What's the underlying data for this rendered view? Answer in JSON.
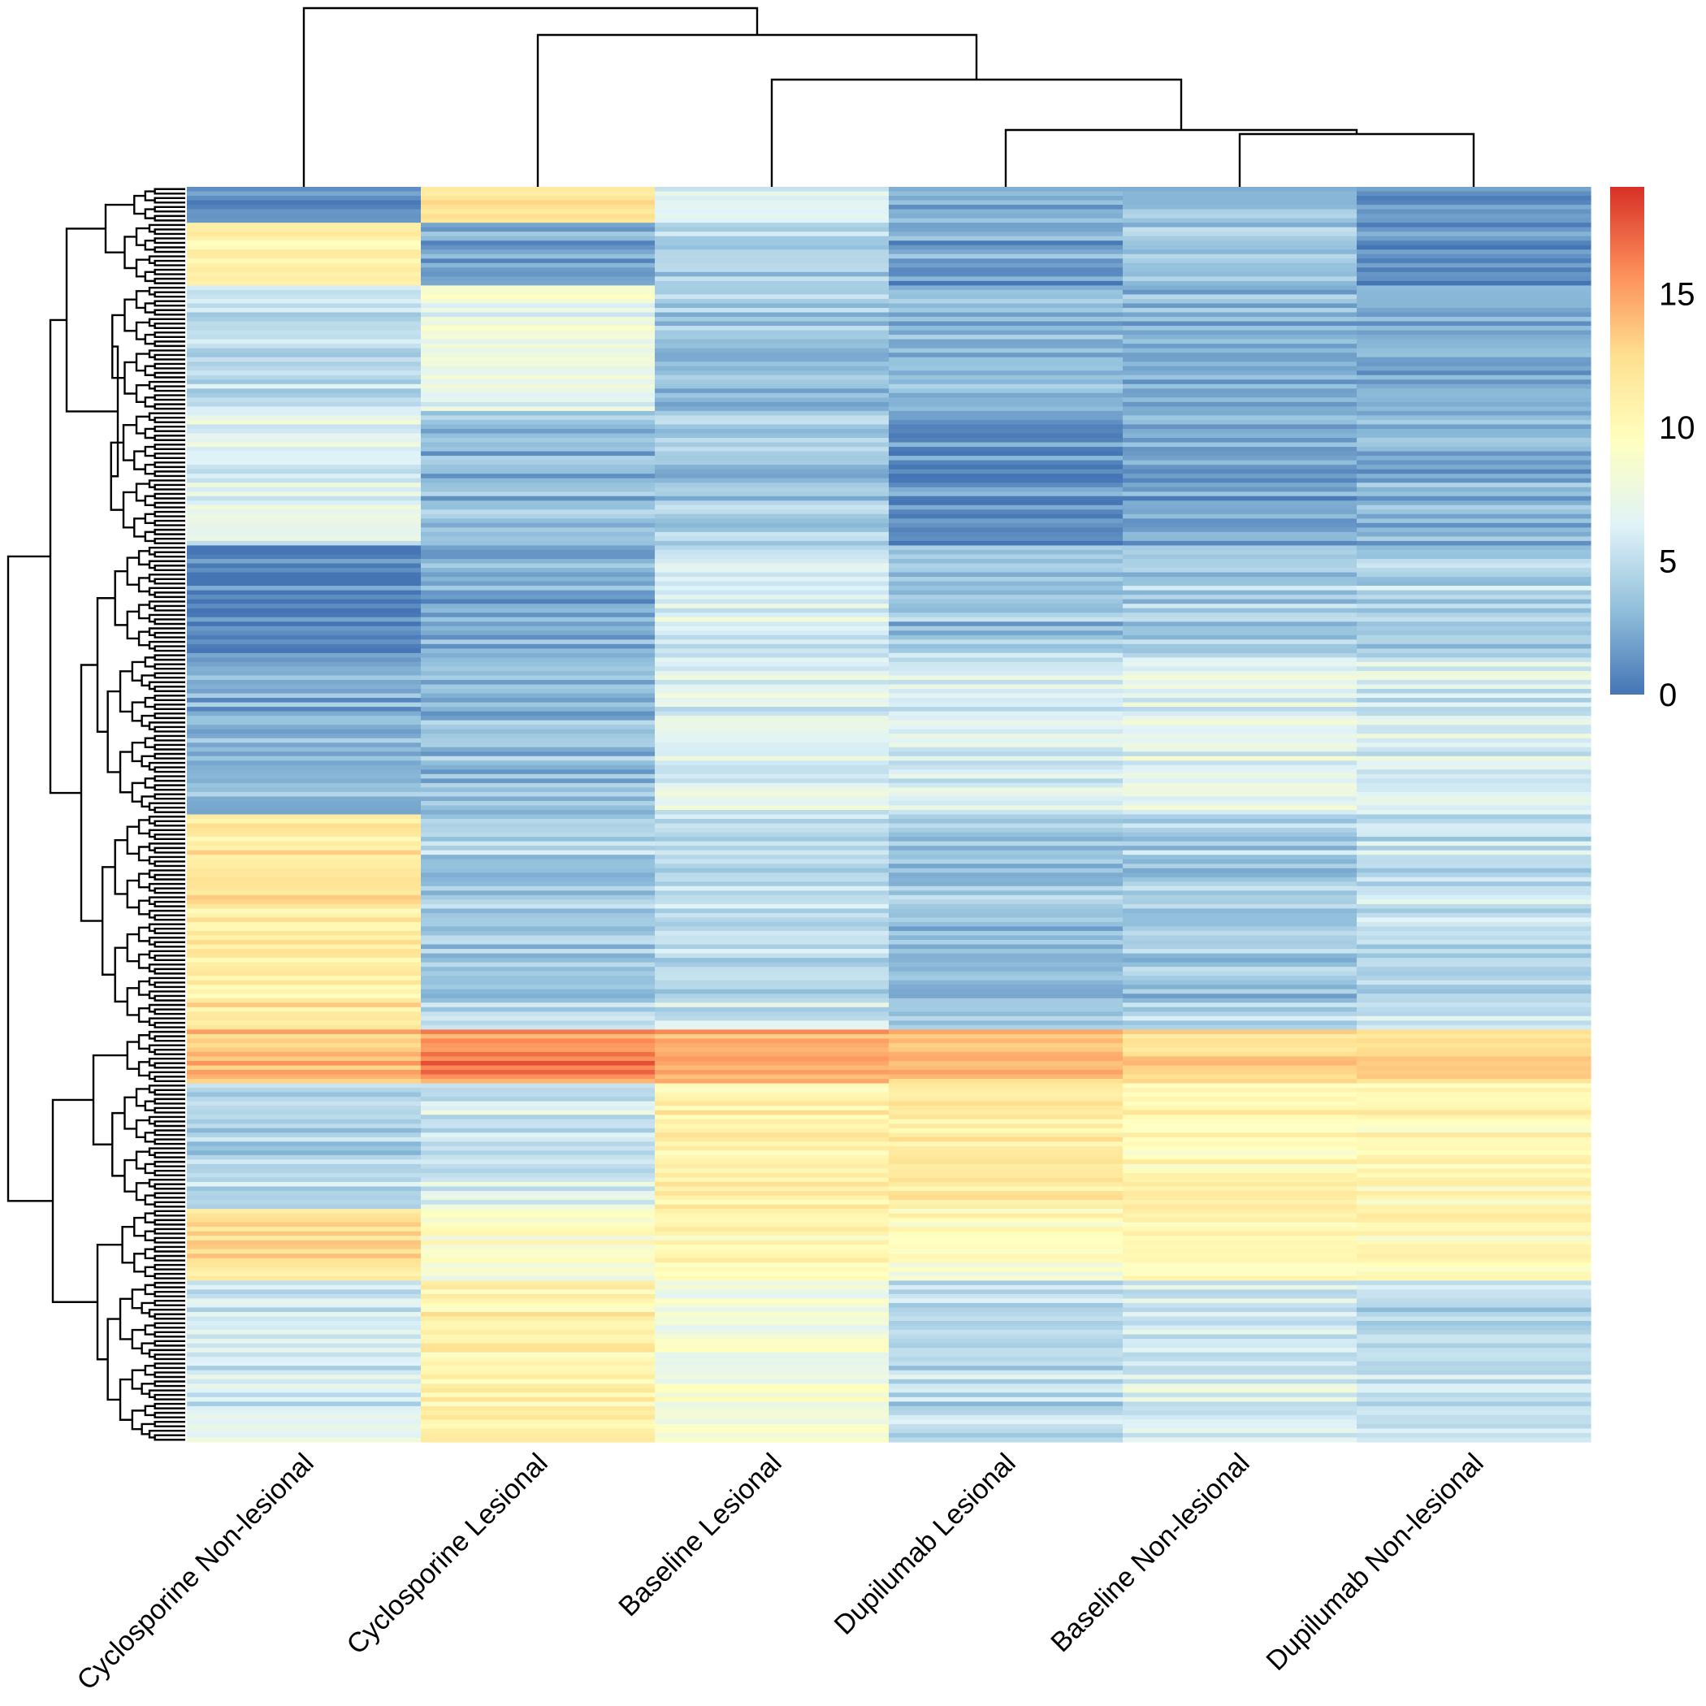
{
  "chart_data": {
    "type": "heatmap",
    "title": "",
    "xlabel": "",
    "ylabel": "",
    "columns": [
      "Cyclosporine Non-lesional",
      "Cyclosporine Lesional",
      "Baseline Lesional",
      "Dupilumab Lesional",
      "Baseline Non-lesional",
      "Dupilumab Non-lesional"
    ],
    "colorbar": {
      "min": 0,
      "max": 19,
      "ticks": [
        "0",
        "5",
        "10",
        "15"
      ],
      "palette": [
        "#4575b4",
        "#91bfdb",
        "#e0f3f8",
        "#ffffbf",
        "#fee090",
        "#fc8d59",
        "#d73027"
      ]
    },
    "row_clusters_shown": true,
    "column_clusters_shown": true,
    "row_block_profiles": [
      {
        "label_hint": "",
        "rows": 8,
        "values": [
          1.5,
          13.0,
          7.0,
          3.0,
          4.0,
          2.0
        ]
      },
      {
        "label_hint": "",
        "rows": 14,
        "values": [
          11.0,
          2.0,
          4.0,
          2.0,
          4.0,
          1.5
        ]
      },
      {
        "label_hint": "",
        "rows": 28,
        "values": [
          5.0,
          7.5,
          3.5,
          3.0,
          2.5,
          2.5
        ]
      },
      {
        "label_hint": "",
        "rows": 30,
        "values": [
          6.5,
          3.0,
          4.0,
          1.0,
          2.0,
          2.5
        ]
      },
      {
        "label_hint": "",
        "rows": 24,
        "values": [
          0.5,
          2.5,
          6.0,
          3.5,
          4.0,
          4.5
        ]
      },
      {
        "label_hint": "",
        "rows": 36,
        "values": [
          2.5,
          3.0,
          6.5,
          6.0,
          6.5,
          6.0
        ]
      },
      {
        "label_hint": "",
        "rows": 48,
        "values": [
          11.5,
          4.0,
          5.0,
          3.5,
          4.0,
          5.0
        ]
      },
      {
        "label_hint": "",
        "rows": 12,
        "values": [
          14.0,
          16.0,
          15.0,
          14.0,
          13.0,
          13.0
        ]
      },
      {
        "label_hint": "",
        "rows": 28,
        "values": [
          4.5,
          6.0,
          11.0,
          11.5,
          10.5,
          10.5
        ]
      },
      {
        "label_hint": "",
        "rows": 16,
        "values": [
          12.5,
          9.0,
          10.5,
          9.5,
          10.5,
          10.5
        ]
      },
      {
        "label_hint": "",
        "rows": 36,
        "values": [
          6.0,
          11.0,
          8.0,
          5.0,
          6.0,
          5.0
        ]
      }
    ]
  }
}
